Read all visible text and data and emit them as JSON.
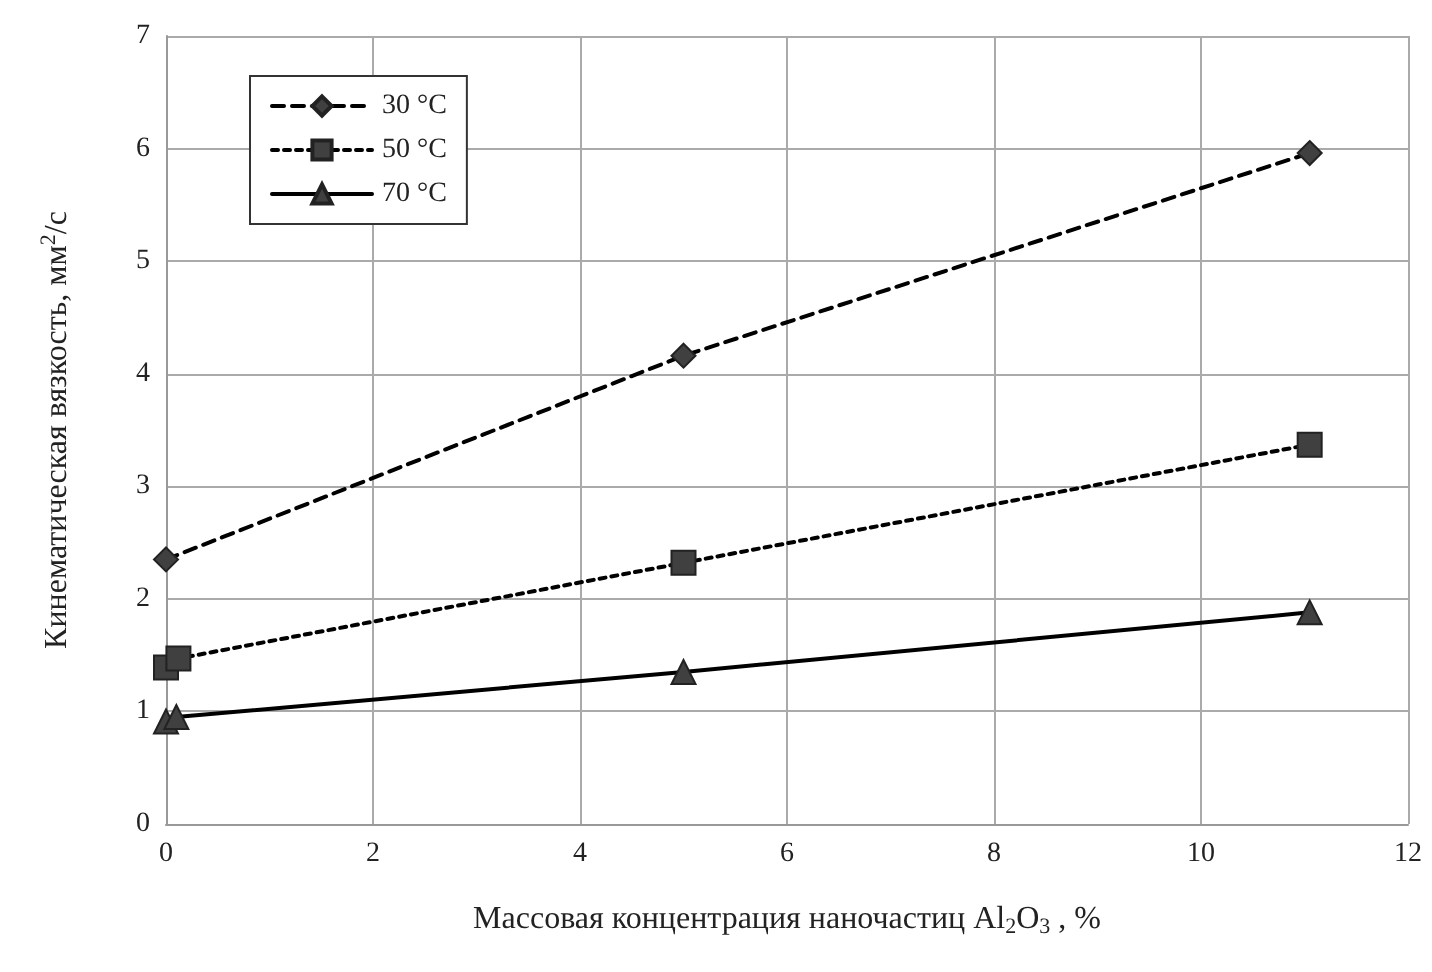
{
  "chart_data": {
    "type": "line",
    "xlabel": "Массовая концентрация наночастиц Al$_{2}$O$_{3}$ , %",
    "ylabel": "Кинематическая вязкость, мм$^{2}$/с",
    "xlim": [
      0,
      12
    ],
    "xticks": [
      0,
      2,
      4,
      6,
      8,
      10,
      12
    ],
    "ylim": [
      0,
      7
    ],
    "yticks": [
      0,
      1,
      2,
      3,
      4,
      5,
      6,
      7
    ],
    "grid": true,
    "legend": "top left",
    "series": [
      {
        "name": "30 °C",
        "color": "#404040",
        "marker": "diamond",
        "line_style": "dashed",
        "x": [
          0,
          5,
          11.05
        ],
        "values": [
          2.35,
          4.16,
          5.96
        ]
      },
      {
        "name": "50 °C",
        "color": "#404040",
        "marker": "square",
        "line_style": "dotted",
        "x": [
          0,
          0.12,
          5,
          11.05
        ],
        "values": [
          1.39,
          1.47,
          2.32,
          3.37
        ]
      },
      {
        "name": "70 °C",
        "color": "#404040",
        "marker": "triangle",
        "line_style": "solid",
        "x": [
          0,
          0.1,
          5,
          11.05
        ],
        "values": [
          0.91,
          0.95,
          1.35,
          1.88
        ]
      }
    ]
  }
}
